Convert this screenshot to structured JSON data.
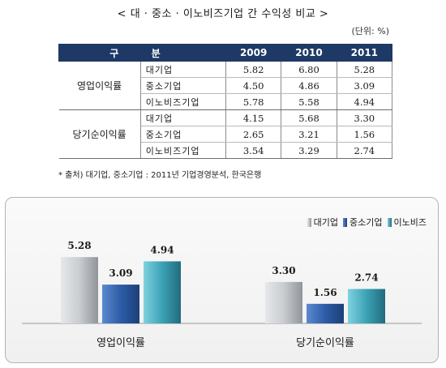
{
  "title": "< 대 · 중소 · 이노비즈기업 간 수익성 비교 >",
  "unit": "(단위: %)",
  "table": {
    "header": [
      "구 분",
      "2009",
      "2010",
      "2011"
    ],
    "groups": [
      {
        "name": "영업이익률",
        "rows": [
          {
            "label": "대기업",
            "values": [
              "5.82",
              "6.80",
              "5.28"
            ]
          },
          {
            "label": "중소기업",
            "values": [
              "4.50",
              "4.86",
              "3.09"
            ]
          },
          {
            "label": "이노비즈기업",
            "values": [
              "5.78",
              "5.58",
              "4.94"
            ]
          }
        ]
      },
      {
        "name": "당기순이익률",
        "rows": [
          {
            "label": "대기업",
            "values": [
              "4.15",
              "5.68",
              "3.30"
            ]
          },
          {
            "label": "중소기업",
            "values": [
              "2.65",
              "3.21",
              "1.56"
            ]
          },
          {
            "label": "이노비즈기업",
            "values": [
              "3.54",
              "3.29",
              "2.74"
            ]
          }
        ]
      }
    ]
  },
  "source": "* 출처) 대기업, 중소기업 : 2011년 기업경영분석, 한국은행",
  "colors": {
    "header_bg": "#1f3967",
    "large": "#bfc3c7",
    "sme": "#2f5ea8",
    "innobiz": "#3aa0b4"
  },
  "chart_data": {
    "type": "bar",
    "categories": [
      "영업이익률",
      "당기순이익률"
    ],
    "series": [
      {
        "name": "대기업",
        "values": [
          5.28,
          3.3
        ],
        "labels": [
          "5.28",
          "3.30"
        ]
      },
      {
        "name": "중소기업",
        "values": [
          3.09,
          1.56
        ],
        "labels": [
          "3.09",
          "1.56"
        ]
      },
      {
        "name": "이노비즈",
        "values": [
          4.94,
          2.74
        ],
        "labels": [
          "4.94",
          "2.74"
        ]
      }
    ],
    "title": "",
    "xlabel": "",
    "ylabel": "",
    "ylim": [
      0,
      7
    ],
    "grid": false,
    "legend": "top-right"
  }
}
